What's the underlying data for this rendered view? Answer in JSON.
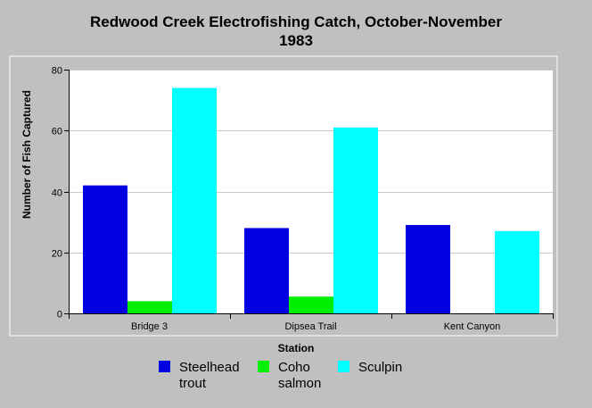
{
  "chart_data": {
    "type": "bar",
    "title": "Redwood Creek Electrofishing Catch, October-November 1983",
    "title_lines": [
      "Redwood Creek Electrofishing Catch, October-November",
      "1983"
    ],
    "xlabel": "Station",
    "ylabel": "Number of Fish Captured",
    "categories": [
      "Bridge 3",
      "Dipsea Trail",
      "Kent Canyon"
    ],
    "series": [
      {
        "name": "Steelhead trout",
        "legend_lines": [
          "Steelhead",
          "trout"
        ],
        "color": "#0000e0",
        "values": [
          42,
          28,
          29
        ]
      },
      {
        "name": "Coho salmon",
        "legend_lines": [
          "Coho",
          "salmon"
        ],
        "color": "#00ee00",
        "values": [
          4,
          5.5,
          0
        ]
      },
      {
        "name": "Sculpin",
        "legend_lines": [
          "Sculpin"
        ],
        "color": "#00ffff",
        "values": [
          74,
          61,
          27
        ]
      }
    ],
    "ylim": [
      0,
      80
    ],
    "yticks": [
      "0",
      "20",
      "40",
      "60",
      "80"
    ],
    "grid": true,
    "legend_position": "bottom"
  }
}
